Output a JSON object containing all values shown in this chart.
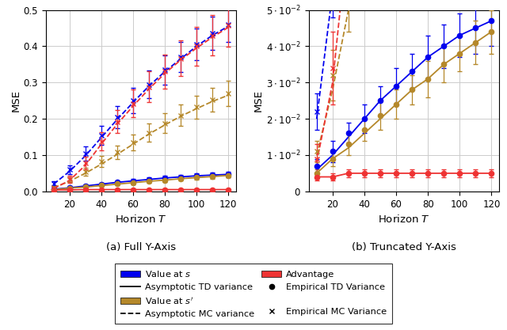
{
  "T_values": [
    10,
    20,
    30,
    40,
    50,
    60,
    70,
    80,
    90,
    100,
    110,
    120
  ],
  "td_blue_solid": [
    0.006,
    0.01,
    0.015,
    0.02,
    0.025,
    0.029,
    0.033,
    0.037,
    0.04,
    0.043,
    0.045,
    0.047
  ],
  "td_gold_solid": [
    0.005,
    0.009,
    0.012,
    0.016,
    0.02,
    0.024,
    0.028,
    0.031,
    0.035,
    0.038,
    0.041,
    0.044
  ],
  "td_red_solid": [
    0.004,
    0.004,
    0.005,
    0.005,
    0.005,
    0.005,
    0.005,
    0.005,
    0.005,
    0.005,
    0.005,
    0.005
  ],
  "mc_blue_dashed": [
    0.02,
    0.055,
    0.098,
    0.148,
    0.198,
    0.245,
    0.29,
    0.33,
    0.365,
    0.4,
    0.43,
    0.455
  ],
  "mc_gold_dashed": [
    0.01,
    0.028,
    0.05,
    0.075,
    0.102,
    0.13,
    0.158,
    0.183,
    0.207,
    0.228,
    0.248,
    0.265
  ],
  "mc_red_dashed": [
    0.008,
    0.03,
    0.072,
    0.13,
    0.185,
    0.235,
    0.282,
    0.325,
    0.362,
    0.395,
    0.425,
    0.452
  ],
  "emp_td_blue": [
    0.007,
    0.011,
    0.016,
    0.02,
    0.025,
    0.029,
    0.033,
    0.037,
    0.04,
    0.043,
    0.045,
    0.047
  ],
  "emp_td_gold": [
    0.005,
    0.009,
    0.013,
    0.017,
    0.021,
    0.024,
    0.028,
    0.031,
    0.035,
    0.038,
    0.041,
    0.044
  ],
  "emp_td_red": [
    0.004,
    0.004,
    0.005,
    0.005,
    0.005,
    0.005,
    0.005,
    0.005,
    0.005,
    0.005,
    0.005,
    0.005
  ],
  "emp_mc_blue": [
    0.022,
    0.06,
    0.105,
    0.155,
    0.205,
    0.25,
    0.295,
    0.335,
    0.37,
    0.405,
    0.435,
    0.46
  ],
  "emp_mc_gold": [
    0.011,
    0.032,
    0.055,
    0.082,
    0.108,
    0.135,
    0.162,
    0.188,
    0.21,
    0.232,
    0.252,
    0.27
  ],
  "emp_mc_red": [
    0.009,
    0.034,
    0.078,
    0.138,
    0.192,
    0.242,
    0.288,
    0.33,
    0.367,
    0.4,
    0.43,
    0.457
  ],
  "err_td_blue": [
    0.002,
    0.003,
    0.003,
    0.004,
    0.004,
    0.005,
    0.005,
    0.006,
    0.006,
    0.006,
    0.007,
    0.007
  ],
  "err_td_gold": [
    0.001,
    0.002,
    0.003,
    0.003,
    0.004,
    0.004,
    0.004,
    0.005,
    0.005,
    0.005,
    0.006,
    0.006
  ],
  "err_td_red": [
    0.001,
    0.001,
    0.001,
    0.001,
    0.001,
    0.001,
    0.001,
    0.001,
    0.001,
    0.001,
    0.001,
    0.001
  ],
  "err_mc_blue": [
    0.005,
    0.012,
    0.02,
    0.026,
    0.03,
    0.035,
    0.038,
    0.04,
    0.042,
    0.044,
    0.046,
    0.048
  ],
  "err_mc_gold": [
    0.003,
    0.007,
    0.011,
    0.015,
    0.018,
    0.022,
    0.025,
    0.027,
    0.029,
    0.031,
    0.033,
    0.035
  ],
  "err_mc_red": [
    0.004,
    0.01,
    0.018,
    0.025,
    0.032,
    0.038,
    0.042,
    0.046,
    0.05,
    0.053,
    0.056,
    0.059
  ],
  "color_blue": "#0000ee",
  "color_gold": "#b5882a",
  "color_red": "#ee3333",
  "ylim_full": [
    0.0,
    0.5
  ],
  "yticks_full": [
    0.0,
    0.1,
    0.2,
    0.3,
    0.4,
    0.5
  ],
  "ylim_trunc": [
    0.0,
    0.05
  ],
  "yticks_trunc": [
    0.0,
    0.01,
    0.02,
    0.03,
    0.04,
    0.05
  ],
  "xlabel": "Horizon $T$",
  "ylabel": "MSE",
  "title_a": "(a) Full Y-Axis",
  "title_b": "(b) Truncated Y-Axis"
}
